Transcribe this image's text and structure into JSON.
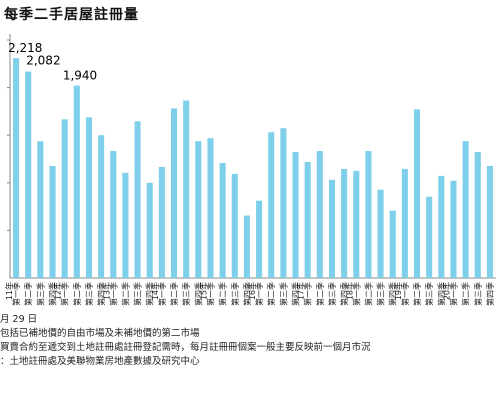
{
  "header": {
    "title": "每季二手居屋註冊量"
  },
  "chart_data": {
    "type": "bar",
    "title": "每季二手居屋註冊量",
    "xlabel": "",
    "ylabel": "",
    "ylim": [
      0,
      2400
    ],
    "grid": false,
    "legend": "none",
    "bar_color": "#7ed0ea",
    "categories": [
      "第一季",
      "第二季",
      "第三季",
      "第四季",
      "第一季",
      "第二季",
      "第三季",
      "第四季",
      "第一季",
      "第二季",
      "第三季",
      "第四季",
      "第一季",
      "第二季",
      "第三季",
      "第四季",
      "第一季",
      "第二季",
      "第三季",
      "第四季",
      "第一季",
      "第二季",
      "第三季",
      "第四季",
      "第一季",
      "第二季",
      "第三季",
      "第四季",
      "第一季",
      "第二季",
      "第三季",
      "第四季",
      "第一季",
      "第二季",
      "第三季",
      "第四季",
      "第一季",
      "第二季",
      "第三季",
      "第四季"
    ],
    "year_labels": [
      {
        "index": 0,
        "label": "11年"
      },
      {
        "index": 4,
        "label": "12年"
      },
      {
        "index": 8,
        "label": "13年"
      },
      {
        "index": 12,
        "label": "14年"
      },
      {
        "index": 16,
        "label": "15年"
      },
      {
        "index": 20,
        "label": "16年"
      },
      {
        "index": 24,
        "label": "17年"
      },
      {
        "index": 28,
        "label": "18年"
      },
      {
        "index": 32,
        "label": "19年"
      },
      {
        "index": 36,
        "label": "20年"
      }
    ],
    "values": [
      2218,
      2082,
      1380,
      1130,
      1600,
      1940,
      1620,
      1440,
      1280,
      1060,
      1580,
      960,
      1120,
      1710,
      1790,
      1380,
      1410,
      1160,
      1050,
      630,
      780,
      1470,
      1510,
      1270,
      1170,
      1280,
      990,
      1100,
      1080,
      1280,
      890,
      680,
      1100,
      1700,
      820,
      1030,
      980,
      1380,
      1270,
      1130
    ],
    "data_labels": [
      {
        "index": 0,
        "text": "2,218"
      },
      {
        "index": 1,
        "text": "2,082"
      },
      {
        "index": 5,
        "text": "1,940"
      }
    ]
  },
  "notes": {
    "date": "月 29 日",
    "line1": "包括已補地價的自由市場及未補地價的第二市場",
    "line2": "買賣合約至遞交到土地註冊處註冊登記需時，每月註冊冊個案一般主要反映前一個月市況",
    "line3": "：土地註冊處及美聯物業房地產數據及研究中心"
  }
}
